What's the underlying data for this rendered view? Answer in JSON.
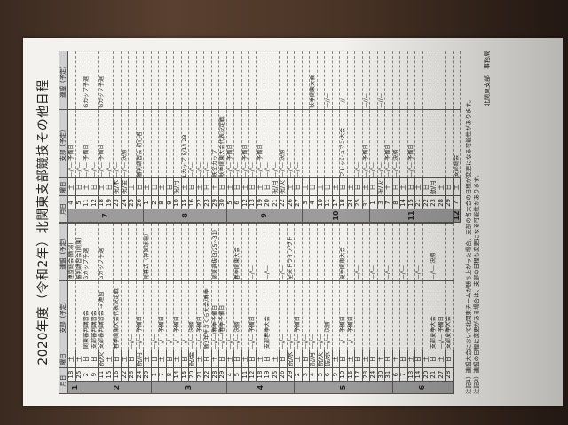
{
  "title": "2020年度（令和2年）北関東支部競技その他日程",
  "headers": {
    "month_day": "月日",
    "weekday": "曜日",
    "branch": "支部（予定）",
    "federation": "連盟（予定）"
  },
  "left_table": [
    {
      "month": "1",
      "rows": [
        [
          "18",
          "土",
          "",
          "連盟総会(新潟)"
        ],
        [
          "25",
          "土",
          "",
          "審判講習会(関東)"
        ]
      ]
    },
    {
      "month": "2",
      "rows": [
        [
          "2",
          "日",
          "関東審判講習会",
          "Gカップ予選"
        ],
        [
          "9",
          "日",
          "支部審判講習会",
          ""
        ],
        [
          "11",
          "祝/火",
          "支部審判講習会 → 連盟",
          "Gカップ予選"
        ],
        [
          "15",
          "土",
          "",
          ""
        ],
        [
          "16",
          "日",
          "春季関東大会代表決定戦",
          ""
        ],
        [
          "22",
          "土",
          "",
          ""
        ],
        [
          "23",
          "日",
          "—//—",
          ""
        ],
        [
          "24",
          "祝/月",
          "—//— 予備日",
          ""
        ],
        [
          "29",
          "土",
          "",
          "開幕式（神宮球場）"
        ]
      ]
    },
    {
      "month": "3",
      "rows": [
        [
          "1",
          "日",
          "—//—",
          ""
        ],
        [
          "7",
          "土",
          "—//— 予備日",
          ""
        ],
        [
          "8",
          "日",
          "—//—",
          ""
        ],
        [
          "14",
          "土",
          "—//— 予備日",
          ""
        ],
        [
          "15",
          "日",
          "—//—",
          ""
        ],
        [
          "20",
          "祝/金",
          "—//— 決勝",
          ""
        ],
        [
          "21",
          "土",
          "—//— 予備日",
          ""
        ],
        [
          "22",
          "日",
          "新2年生さくら大会/春季",
          ""
        ],
        [
          "28",
          "土",
          "—//—/春季予備日",
          "関東選抜(3/25~31)"
        ],
        [
          "29",
          "日",
          "—//—/春季予備日",
          ""
        ]
      ]
    },
    {
      "month": "4",
      "rows": [
        [
          "4",
          "土",
          "—//—",
          ""
        ],
        [
          "5",
          "日",
          "—//— 決勝",
          "春季関東大会"
        ],
        [
          "11",
          "土",
          "",
          ""
        ],
        [
          "12",
          "日",
          "—//— 予備日",
          "—//—"
        ],
        [
          "18",
          "土",
          "",
          ""
        ],
        [
          "19",
          "日",
          "支部春季大会",
          "—//—"
        ],
        [
          "25",
          "土",
          "",
          ""
        ],
        [
          "26",
          "日",
          "—//—",
          "—//—"
        ],
        [
          "29",
          "祝/水",
          "—//—",
          "全米トライアウト"
        ]
      ]
    },
    {
      "month": "5",
      "rows": [
        [
          "2",
          "土",
          "—//— 予備日",
          ""
        ],
        [
          "3",
          "日",
          "—//—",
          ""
        ],
        [
          "4",
          "祝/月",
          "—//—",
          ""
        ],
        [
          "5",
          "祝/火",
          "—//—",
          ""
        ],
        [
          "6",
          "振/水",
          "—//— 決勝",
          ""
        ],
        [
          "9",
          "土",
          "",
          ""
        ],
        [
          "10",
          "日",
          "—//— 予備日",
          "夏季関東大会"
        ],
        [
          "16",
          "土",
          "—//— 予備日",
          ""
        ],
        [
          "17",
          "日",
          "",
          "—//—"
        ],
        [
          "23",
          "土",
          "",
          ""
        ],
        [
          "24",
          "日",
          "",
          "—//—"
        ],
        [
          "30",
          "土",
          "",
          ""
        ],
        [
          "31",
          "日",
          "",
          "—//—"
        ]
      ]
    },
    {
      "month": "6",
      "rows": [
        [
          "6",
          "土",
          "",
          ""
        ],
        [
          "7",
          "日",
          "",
          "—//—"
        ],
        [
          "13",
          "土",
          "",
          ""
        ],
        [
          "14",
          "日",
          "",
          "—//—"
        ],
        [
          "20",
          "土",
          "",
          ""
        ],
        [
          "21",
          "日",
          "支部夏季大会",
          "—//— 決勝"
        ],
        [
          "27",
          "土",
          "—//— 予備日",
          ""
        ],
        [
          "28",
          "日",
          "支部夏季大会",
          ""
        ]
      ]
    }
  ],
  "right_table": [
    {
      "month": "7",
      "rows": [
        [
          "4",
          "土",
          "—//— 予備日",
          ""
        ],
        [
          "5",
          "日",
          "—//—",
          ""
        ],
        [
          "11",
          "土",
          "—//— 予備日",
          "Gカップ予選"
        ],
        [
          "12",
          "日",
          "—//—",
          ""
        ],
        [
          "18",
          "土",
          "—//— 予備日",
          "Gカップ予選"
        ],
        [
          "19",
          "日",
          "—//—",
          ""
        ],
        [
          "23",
          "祝/木",
          "—//—",
          ""
        ],
        [
          "24",
          "祝/金",
          "—//— 決勝",
          ""
        ],
        [
          "25",
          "土",
          "",
          ""
        ],
        [
          "26",
          "日",
          "審判講習会 初心者",
          ""
        ]
      ]
    },
    {
      "month": "8",
      "rows": [
        [
          "1",
          "土",
          "",
          ""
        ],
        [
          "2",
          "日",
          "",
          ""
        ],
        [
          "8",
          "土",
          "",
          ""
        ],
        [
          "9",
          "日",
          "",
          ""
        ],
        [
          "10",
          "祝/月",
          "",
          ""
        ],
        [
          "15",
          "土",
          "Lカップ 8/14-23",
          ""
        ],
        [
          "16",
          "日",
          "—//—",
          ""
        ],
        [
          "22",
          "土",
          "—//—",
          ""
        ],
        [
          "23",
          "日",
          "—//—",
          ""
        ],
        [
          "29",
          "土",
          "秩父カップ",
          ""
        ],
        [
          "30",
          "日",
          "秋季関東大会代表決定戦",
          ""
        ]
      ]
    },
    {
      "month": "9",
      "rows": [
        [
          "5",
          "土",
          "—//— 予備日",
          ""
        ],
        [
          "6",
          "日",
          "—//—",
          ""
        ],
        [
          "12",
          "土",
          "—//— 予備日",
          ""
        ],
        [
          "13",
          "日",
          "—//—",
          ""
        ],
        [
          "19",
          "土",
          "—//— 予備日",
          ""
        ],
        [
          "20",
          "日",
          "—//—",
          ""
        ],
        [
          "21",
          "祝/月",
          "—//—",
          ""
        ],
        [
          "22",
          "祝/火",
          "—//— 決勝",
          ""
        ],
        [
          "26",
          "土",
          "—//—",
          ""
        ],
        [
          "27",
          "日",
          "—//—",
          ""
        ]
      ]
    },
    {
      "month": "10",
      "rows": [
        [
          "3",
          "土",
          "",
          ""
        ],
        [
          "4",
          "日",
          "",
          "秋季関東大会"
        ],
        [
          "10",
          "土",
          "",
          ""
        ],
        [
          "11",
          "日",
          "",
          "—//—"
        ],
        [
          "17",
          "土",
          "",
          ""
        ],
        [
          "18",
          "日",
          "フレッシュマン大会",
          "—//—"
        ],
        [
          "24",
          "土",
          "",
          ""
        ],
        [
          "25",
          "日",
          "—//—",
          ""
        ],
        [
          "31",
          "土",
          "—//— 予備日",
          "—//—"
        ]
      ]
    },
    {
      "month": "11",
      "rows": [
        [
          "1",
          "日",
          "—//—",
          ""
        ],
        [
          "3",
          "祝/火",
          "—//—",
          "—//—"
        ],
        [
          "7",
          "土",
          "—//— 予備日",
          ""
        ],
        [
          "8",
          "日",
          "—//— 決勝",
          ""
        ],
        [
          "14",
          "土",
          "",
          ""
        ],
        [
          "15",
          "日",
          "—//— 予備日",
          ""
        ],
        [
          "21",
          "土",
          "",
          ""
        ],
        [
          "22",
          "日",
          "",
          ""
        ],
        [
          "23",
          "勤/月",
          "",
          ""
        ],
        [
          "28",
          "土",
          "",
          ""
        ],
        [
          "29",
          "日",
          "",
          ""
        ]
      ]
    },
    {
      "month": "12",
      "rows": [
        [
          "7",
          "土",
          "支部総会",
          ""
        ]
      ]
    }
  ],
  "notes": [
    "注記1）連盟大会において北関東チームが勝ち上がった場合、支部の各大会の日程が変更になる可能性があります。",
    "注記2）連盟の日程に変更がある場合は、支部の日程も変更になる可能性があります。"
  ],
  "signature": "北関東支部　事務局"
}
